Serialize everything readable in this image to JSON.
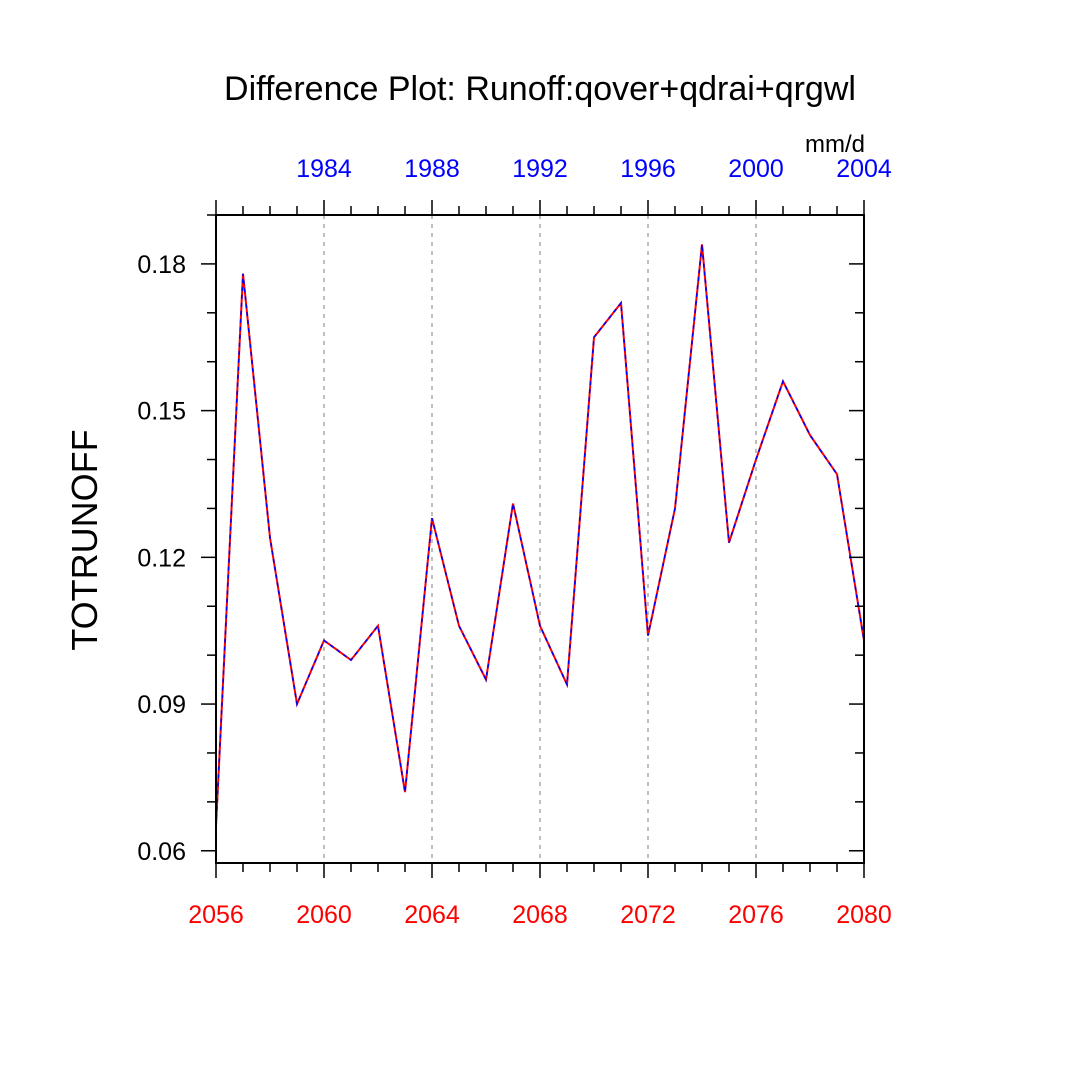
{
  "chart_data": {
    "type": "line",
    "title": "Difference Plot: Runoff:qover+qdrai+qrgwl",
    "ylabel": "TOTRUNOFF",
    "units": "mm/d",
    "xlim": [
      2056,
      2080
    ],
    "ylim": [
      0.0575,
      0.19
    ],
    "y_ticks": [
      "0.06",
      "0.09",
      "0.12",
      "0.15",
      "0.18"
    ],
    "x_bottom_ticks": [
      "2056",
      "2060",
      "2064",
      "2068",
      "2072",
      "2076",
      "2080"
    ],
    "x_top_ticks": [
      "1984",
      "1988",
      "1992",
      "1996",
      "2000",
      "2004"
    ],
    "grid": "vertical dashed",
    "colors": {
      "bottom_axis": "#ff0000",
      "top_axis": "#0000ff",
      "series_a": "#ff0000",
      "series_b": "#0000ff",
      "grid": "#aaaaaa",
      "frame": "#000000"
    },
    "x": [
      2056,
      2057,
      2058,
      2059,
      2060,
      2061,
      2062,
      2063,
      2064,
      2065,
      2066,
      2067,
      2068,
      2069,
      2070,
      2071,
      2072,
      2073,
      2074,
      2075,
      2076,
      2077,
      2078,
      2079,
      2080
    ],
    "series": [
      {
        "values": [
          0.065,
          0.178,
          0.124,
          0.09,
          0.103,
          0.099,
          0.106,
          0.072,
          0.128,
          0.106,
          0.095,
          0.131,
          0.106,
          0.094,
          0.165,
          0.172,
          0.104,
          0.13,
          0.184,
          0.123,
          0.14,
          0.156,
          0.145,
          0.137,
          0.103
        ]
      },
      {
        "values": [
          0.065,
          0.178,
          0.124,
          0.09,
          0.103,
          0.099,
          0.106,
          0.072,
          0.128,
          0.106,
          0.095,
          0.131,
          0.106,
          0.094,
          0.165,
          0.172,
          0.104,
          0.13,
          0.184,
          0.123,
          0.14,
          0.156,
          0.145,
          0.137,
          0.103
        ]
      }
    ]
  }
}
